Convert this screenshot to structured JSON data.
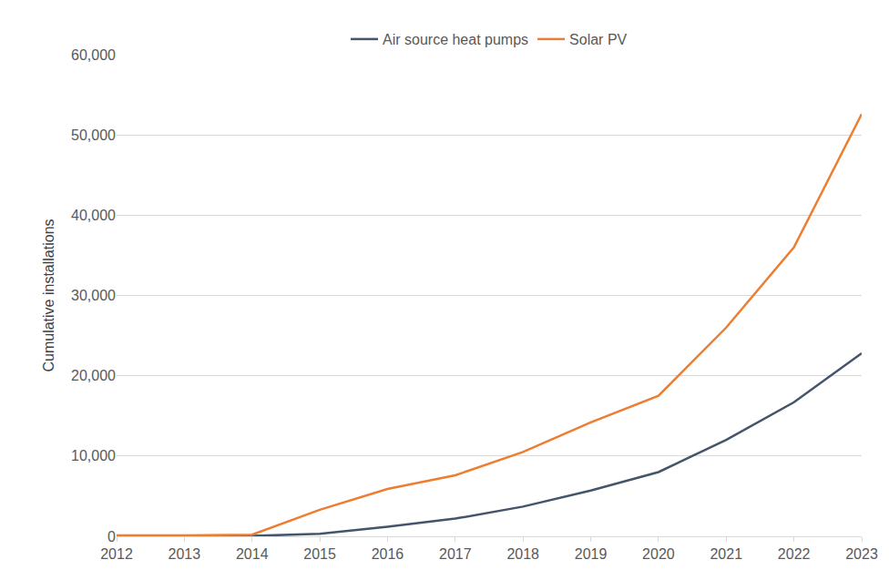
{
  "chart_data": {
    "type": "line",
    "y_label": "Cumulative installations",
    "categories": [
      "2012",
      "2013",
      "2014",
      "2015",
      "2016",
      "2017",
      "2018",
      "2019",
      "2020",
      "2021",
      "2022",
      "2023"
    ],
    "series": [
      {
        "name": "Air source heat pumps",
        "color": "#44546a",
        "values": [
          0,
          0,
          50,
          300,
          1200,
          2200,
          3700,
          5700,
          8000,
          12000,
          16700,
          22800
        ]
      },
      {
        "name": "Solar PV",
        "color": "#ed7d31",
        "values": [
          100,
          100,
          200,
          3300,
          5900,
          7600,
          10500,
          14200,
          17500,
          26000,
          36000,
          52600
        ]
      }
    ],
    "ylim": [
      0,
      60000
    ],
    "yticks": [
      0,
      {
        "value": 10000,
        "label": "10,000"
      },
      {
        "value": 20000,
        "label": "20,000"
      },
      {
        "value": 30000,
        "label": "30,000"
      },
      {
        "value": 40000,
        "label": "40,000"
      },
      {
        "value": 50000,
        "label": "50,000"
      },
      {
        "value": 60000,
        "label": "60,000"
      }
    ],
    "grid": true,
    "legend": "top"
  }
}
